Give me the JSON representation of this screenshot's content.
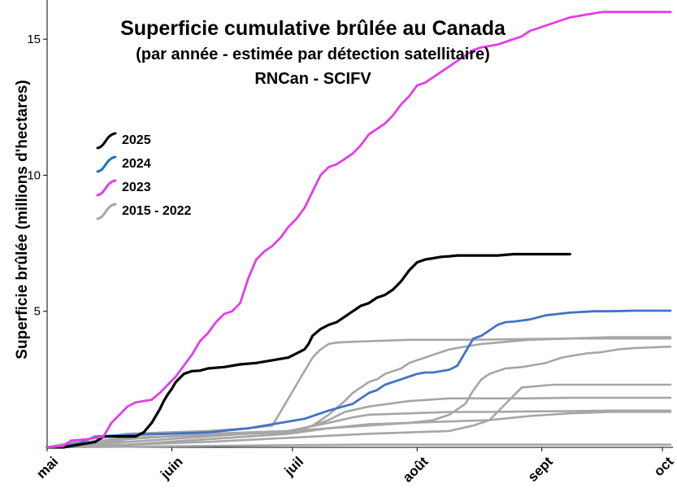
{
  "chart_data": {
    "type": "line",
    "title": "Superficie cumulative brûlée au Canada",
    "subtitle_1": "(par année - estimée par détection satellitaire)",
    "subtitle_2": "RNCan - SCIFV",
    "ylabel": "Superficie brûlée (millions d'hectares)",
    "xlabel": "",
    "x_ticks": [
      {
        "label": "mai",
        "day": 0
      },
      {
        "label": "juin",
        "day": 31
      },
      {
        "label": "juil",
        "day": 61
      },
      {
        "label": "août",
        "day": 92
      },
      {
        "label": "sept",
        "day": 123
      },
      {
        "label": "oct",
        "day": 153
      }
    ],
    "y_ticks": [
      5,
      10,
      15
    ],
    "xlim_days": [
      0,
      155
    ],
    "ylim": [
      0,
      16.2
    ],
    "grid": false,
    "legend_placement": "upper-left",
    "colors": {
      "y2025": "#000000",
      "y2024": "#4472c4",
      "y2023": "#e23ee8",
      "historic": "#a6a6a6"
    },
    "legend": [
      {
        "label": "2025",
        "color": "#000000"
      },
      {
        "label": "2024",
        "color": "#1f77b4"
      },
      {
        "label": "2023",
        "color": "#e23ee8"
      },
      {
        "label": "2015 - 2022",
        "color": "#a6a6a6"
      }
    ],
    "series": [
      {
        "name": "2025",
        "color": "#000000",
        "x": [
          0,
          4,
          8,
          12,
          14,
          18,
          22,
          24,
          26,
          28,
          29,
          30,
          31,
          32,
          34,
          36,
          38,
          40,
          44,
          48,
          52,
          56,
          60,
          62,
          64,
          65,
          66,
          68,
          70,
          72,
          74,
          76,
          78,
          80,
          82,
          84,
          86,
          88,
          90,
          92,
          94,
          96,
          98,
          100,
          102,
          104,
          108,
          112,
          116,
          120,
          124,
          128,
          130
        ],
        "y": [
          0,
          0,
          0.1,
          0.2,
          0.4,
          0.4,
          0.4,
          0.55,
          0.9,
          1.4,
          1.7,
          1.95,
          2.15,
          2.4,
          2.7,
          2.8,
          2.82,
          2.9,
          2.95,
          3.05,
          3.1,
          3.2,
          3.3,
          3.45,
          3.6,
          3.8,
          4.1,
          4.35,
          4.5,
          4.6,
          4.8,
          5.0,
          5.2,
          5.3,
          5.5,
          5.6,
          5.8,
          6.1,
          6.5,
          6.8,
          6.9,
          6.95,
          7.0,
          7.02,
          7.05,
          7.05,
          7.05,
          7.05,
          7.1,
          7.1,
          7.1,
          7.1,
          7.1
        ]
      },
      {
        "name": "2024",
        "color": "#4472c4",
        "x": [
          0,
          4,
          8,
          12,
          20,
          30,
          40,
          50,
          56,
          60,
          64,
          70,
          76,
          80,
          82,
          84,
          86,
          88,
          90,
          92,
          94,
          96,
          98,
          100,
          102,
          104,
          106,
          108,
          110,
          112,
          114,
          116,
          120,
          124,
          130,
          136,
          140,
          146,
          155
        ],
        "y": [
          0,
          0.05,
          0.15,
          0.4,
          0.45,
          0.5,
          0.55,
          0.7,
          0.85,
          0.95,
          1.05,
          1.35,
          1.6,
          2.0,
          2.1,
          2.3,
          2.4,
          2.5,
          2.6,
          2.7,
          2.75,
          2.75,
          2.8,
          2.85,
          3.0,
          3.5,
          4.0,
          4.1,
          4.3,
          4.5,
          4.6,
          4.62,
          4.7,
          4.85,
          4.95,
          5.0,
          5.0,
          5.02,
          5.02
        ]
      },
      {
        "name": "2023",
        "color": "#e23ee8",
        "x": [
          0,
          4,
          6,
          10,
          14,
          16,
          18,
          20,
          22,
          24,
          26,
          28,
          30,
          32,
          34,
          36,
          38,
          40,
          42,
          44,
          46,
          48,
          50,
          52,
          54,
          56,
          58,
          60,
          62,
          64,
          66,
          68,
          70,
          72,
          74,
          76,
          78,
          80,
          82,
          84,
          86,
          88,
          90,
          92,
          94,
          96,
          98,
          100,
          102,
          104,
          106,
          108,
          110,
          112,
          114,
          116,
          118,
          120,
          122,
          124,
          126,
          128,
          130,
          132,
          134,
          136,
          138,
          140,
          142,
          144,
          146,
          148,
          150,
          152,
          155
        ],
        "y": [
          0,
          0.05,
          0.25,
          0.3,
          0.4,
          0.9,
          1.2,
          1.5,
          1.65,
          1.7,
          1.75,
          2.0,
          2.3,
          2.6,
          3.0,
          3.4,
          3.9,
          4.2,
          4.6,
          4.9,
          5.0,
          5.3,
          6.2,
          6.9,
          7.2,
          7.4,
          7.7,
          8.1,
          8.4,
          8.8,
          9.4,
          10.0,
          10.3,
          10.4,
          10.6,
          10.8,
          11.1,
          11.5,
          11.7,
          11.9,
          12.2,
          12.6,
          12.9,
          13.3,
          13.4,
          13.6,
          13.8,
          14.0,
          14.2,
          14.4,
          14.6,
          14.7,
          14.75,
          14.8,
          14.9,
          15.0,
          15.1,
          15.3,
          15.4,
          15.5,
          15.6,
          15.7,
          15.8,
          15.85,
          15.9,
          15.95,
          16.0,
          16.0,
          16.0,
          16.0,
          16.0,
          16.0,
          16.0,
          16.0,
          16.0
        ]
      },
      {
        "name": "hist1",
        "color": "#a6a6a6",
        "x": [
          0,
          10,
          20,
          40,
          50,
          56,
          58,
          60,
          62,
          64,
          66,
          68,
          70,
          72,
          76,
          80,
          90,
          100,
          110,
          120,
          130,
          140,
          155
        ],
        "y": [
          0,
          0.3,
          0.5,
          0.6,
          0.7,
          0.8,
          1.3,
          1.8,
          2.3,
          2.8,
          3.3,
          3.6,
          3.8,
          3.85,
          3.88,
          3.9,
          3.95,
          3.95,
          3.96,
          3.98,
          4.0,
          4.0,
          4.0
        ]
      },
      {
        "name": "hist2",
        "color": "#a6a6a6",
        "x": [
          0,
          10,
          20,
          40,
          60,
          66,
          70,
          74,
          76,
          78,
          80,
          82,
          84,
          86,
          88,
          90,
          92,
          94,
          96,
          100,
          104,
          108,
          112,
          116,
          120,
          130,
          140,
          155
        ],
        "y": [
          0,
          0.2,
          0.35,
          0.45,
          0.55,
          0.8,
          1.2,
          1.7,
          2.0,
          2.2,
          2.4,
          2.5,
          2.7,
          2.8,
          2.9,
          3.1,
          3.2,
          3.3,
          3.4,
          3.6,
          3.7,
          3.8,
          3.85,
          3.9,
          3.95,
          4.0,
          4.05,
          4.05
        ]
      },
      {
        "name": "hist3",
        "color": "#a6a6a6",
        "x": [
          0,
          10,
          20,
          40,
          60,
          80,
          90,
          96,
          100,
          104,
          106,
          108,
          110,
          112,
          114,
          118,
          120,
          122,
          124,
          126,
          128,
          130,
          134,
          138,
          142,
          146,
          155
        ],
        "y": [
          0,
          0.1,
          0.3,
          0.5,
          0.6,
          0.8,
          0.9,
          1.0,
          1.2,
          1.6,
          2.1,
          2.5,
          2.7,
          2.8,
          2.9,
          2.95,
          3.0,
          3.05,
          3.1,
          3.2,
          3.3,
          3.35,
          3.45,
          3.5,
          3.6,
          3.65,
          3.7
        ]
      },
      {
        "name": "hist4",
        "color": "#a6a6a6",
        "x": [
          0,
          20,
          40,
          60,
          80,
          100,
          106,
          110,
          112,
          116,
          118,
          122,
          126,
          130,
          140,
          155
        ],
        "y": [
          0,
          0.1,
          0.2,
          0.35,
          0.5,
          0.6,
          0.8,
          1.0,
          1.3,
          1.9,
          2.2,
          2.25,
          2.3,
          2.3,
          2.3,
          2.3
        ]
      },
      {
        "name": "hist5",
        "color": "#a6a6a6",
        "x": [
          0,
          20,
          40,
          60,
          66,
          70,
          74,
          80,
          90,
          100,
          110,
          120,
          130,
          140,
          155
        ],
        "y": [
          0,
          0.1,
          0.3,
          0.5,
          0.8,
          1.0,
          1.3,
          1.5,
          1.7,
          1.8,
          1.8,
          1.8,
          1.82,
          1.82,
          1.82
        ]
      },
      {
        "name": "hist6",
        "color": "#a6a6a6",
        "x": [
          0,
          20,
          40,
          60,
          70,
          76,
          80,
          90,
          100,
          110,
          120,
          130,
          140,
          155
        ],
        "y": [
          0,
          0.2,
          0.4,
          0.6,
          0.9,
          1.1,
          1.2,
          1.25,
          1.3,
          1.3,
          1.32,
          1.33,
          1.35,
          1.35
        ]
      },
      {
        "name": "hist7",
        "color": "#a6a6a6",
        "x": [
          0,
          20,
          40,
          60,
          70,
          80,
          90,
          100,
          110,
          120,
          130,
          140,
          155
        ],
        "y": [
          0,
          0.1,
          0.3,
          0.5,
          0.7,
          0.85,
          0.9,
          0.95,
          1.0,
          1.15,
          1.25,
          1.3,
          1.3
        ]
      },
      {
        "name": "hist8",
        "color": "#a6a6a6",
        "x": [
          0,
          40,
          60,
          80,
          100,
          120,
          155
        ],
        "y": [
          0,
          0.05,
          0.08,
          0.1,
          0.1,
          0.1,
          0.1
        ]
      }
    ]
  }
}
